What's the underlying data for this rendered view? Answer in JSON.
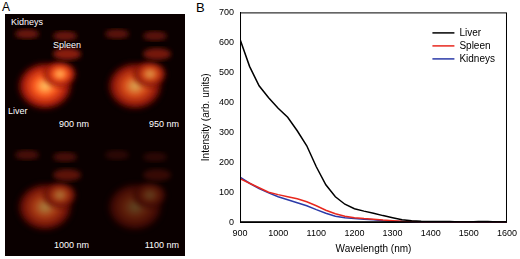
{
  "panel_a": {
    "label": "A",
    "organ_labels": [
      "Kidneys",
      "Spleen",
      "Liver"
    ],
    "captions": [
      "900 nm",
      "950 nm",
      "1000 nm",
      "1100 nm"
    ]
  },
  "panel_b": {
    "label": "B"
  },
  "chart_data": {
    "type": "line",
    "x_label": "Wavelength (nm)",
    "y_label": "Intensity (arb. units)",
    "x": [
      900,
      925,
      950,
      975,
      1000,
      1025,
      1050,
      1075,
      1100,
      1125,
      1150,
      1175,
      1200,
      1225,
      1250,
      1275,
      1300,
      1325,
      1350,
      1375,
      1400,
      1425,
      1450,
      1475,
      1500,
      1525,
      1550,
      1575,
      1600
    ],
    "series": [
      {
        "name": "Liver",
        "color": "#000000",
        "values": [
          610,
          520,
          455,
          415,
          380,
          350,
          305,
          255,
          185,
          125,
          85,
          60,
          45,
          37,
          30,
          22,
          15,
          8,
          5,
          3,
          2,
          2,
          2,
          1,
          1,
          2,
          2,
          1,
          1
        ]
      },
      {
        "name": "Spleen",
        "color": "#e8281e",
        "values": [
          145,
          130,
          115,
          100,
          92,
          85,
          78,
          68,
          55,
          40,
          28,
          20,
          15,
          12,
          10,
          7,
          5,
          3,
          2,
          1,
          1,
          1,
          1,
          1,
          1,
          1,
          1,
          1,
          1
        ]
      },
      {
        "name": "Kidneys",
        "color": "#2b3aa8",
        "values": [
          150,
          130,
          112,
          98,
          85,
          75,
          65,
          55,
          42,
          30,
          20,
          15,
          12,
          10,
          8,
          5,
          3,
          2,
          1,
          1,
          1,
          1,
          1,
          1,
          1,
          1,
          1,
          1,
          1
        ]
      }
    ],
    "xlim": [
      900,
      1600
    ],
    "xticks": [
      900,
      1000,
      1100,
      1200,
      1300,
      1400,
      1500,
      1600
    ],
    "ylim": [
      0,
      700
    ],
    "yticks": [
      0,
      100,
      200,
      300,
      400,
      500,
      600,
      700
    ],
    "grid": false,
    "legend": "upper right"
  }
}
